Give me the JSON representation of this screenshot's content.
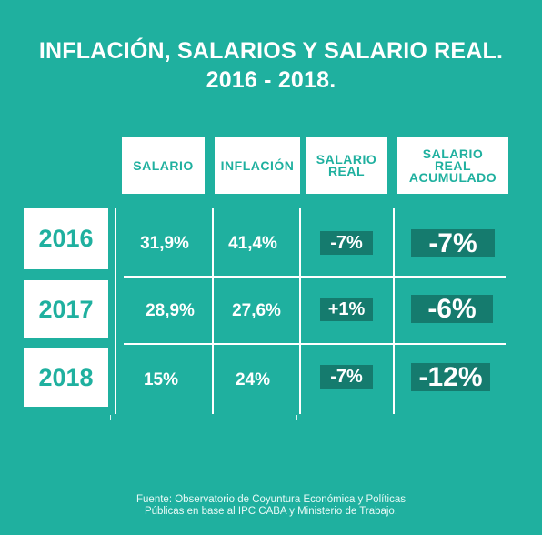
{
  "chart_data": {
    "type": "table",
    "title": "INFLACIÓN, SALARIOS Y SALARIO REAL.",
    "subtitle": "2016 - 2018.",
    "columns": [
      [
        "SALARIO"
      ],
      [
        "INFLACIÓN"
      ],
      [
        "SALARIO",
        "REAL"
      ],
      [
        "SALARIO",
        "REAL",
        "ACUMULADO"
      ]
    ],
    "rows": [
      {
        "year": "2016",
        "salario": "31,9%",
        "inflacion": "41,4%",
        "salario_real": "-7%",
        "acumulado": "-7%"
      },
      {
        "year": "2017",
        "salario": "28,9%",
        "inflacion": "27,6%",
        "salario_real": "+1%",
        "acumulado": "-6%"
      },
      {
        "year": "2018",
        "salario": "15%",
        "inflacion": "24%",
        "salario_real": "-7%",
        "acumulado": "-12%"
      }
    ],
    "source": [
      "Fuente: Observatorio de Coyuntura Económica y Políticas",
      "Públicas en base al IPC CABA y Ministerio de Trabajo."
    ]
  },
  "colors": {
    "background": "#1fb09f",
    "pill": "#157b6e",
    "white": "#ffffff"
  }
}
